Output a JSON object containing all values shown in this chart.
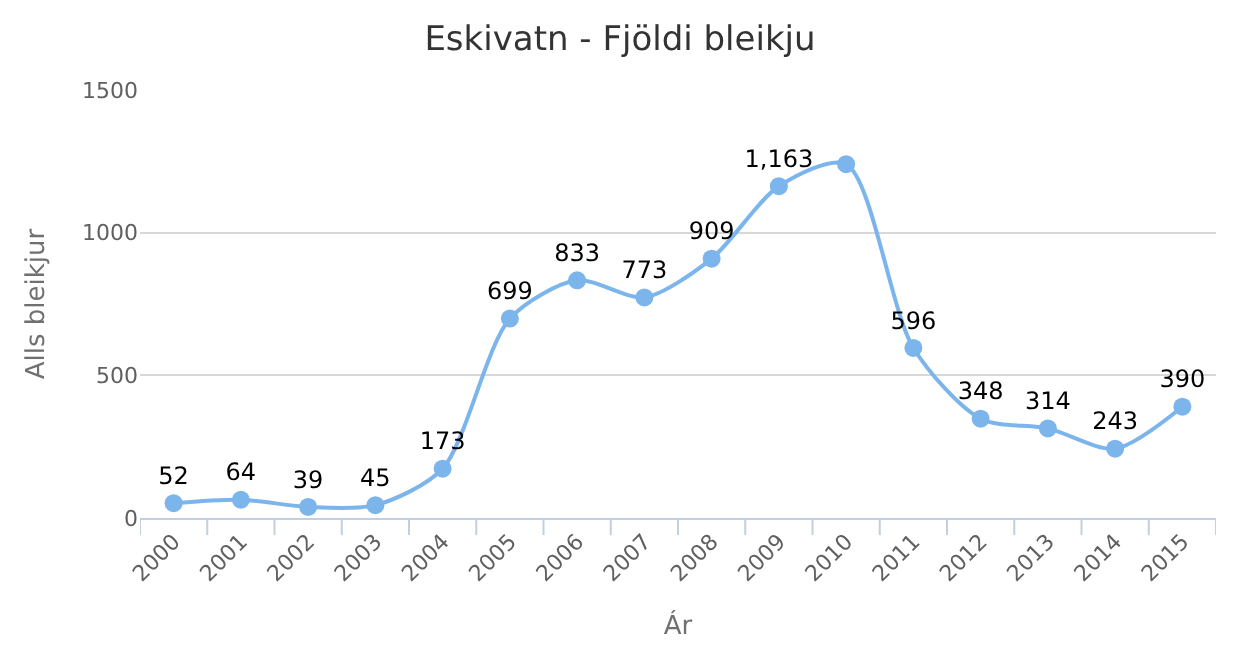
{
  "chart_data": {
    "type": "line",
    "title": "Eskivatn - Fjöldi bleikju",
    "xlabel": "Ár",
    "ylabel": "Alls bleikjur",
    "categories": [
      "2000",
      "2001",
      "2002",
      "2003",
      "2004",
      "2005",
      "2006",
      "2007",
      "2008",
      "2009",
      "2010",
      "2011",
      "2012",
      "2013",
      "2014",
      "2015"
    ],
    "series": [
      {
        "color": "#7cb5ec",
        "values": [
          52,
          64,
          39,
          45,
          173,
          699,
          833,
          773,
          909,
          1163,
          1240,
          596,
          348,
          314,
          243,
          390
        ],
        "value_labels": [
          "52",
          "64",
          "39",
          "45",
          "173",
          "699",
          "833",
          "773",
          "909",
          "1,163",
          null,
          "596",
          "348",
          "314",
          "243",
          "390"
        ]
      }
    ],
    "ylim": [
      0,
      1500
    ],
    "yticks": [
      0,
      500,
      1000,
      1500
    ],
    "grid": "y",
    "legend": false,
    "marker": "circle",
    "line_style": "solid"
  }
}
